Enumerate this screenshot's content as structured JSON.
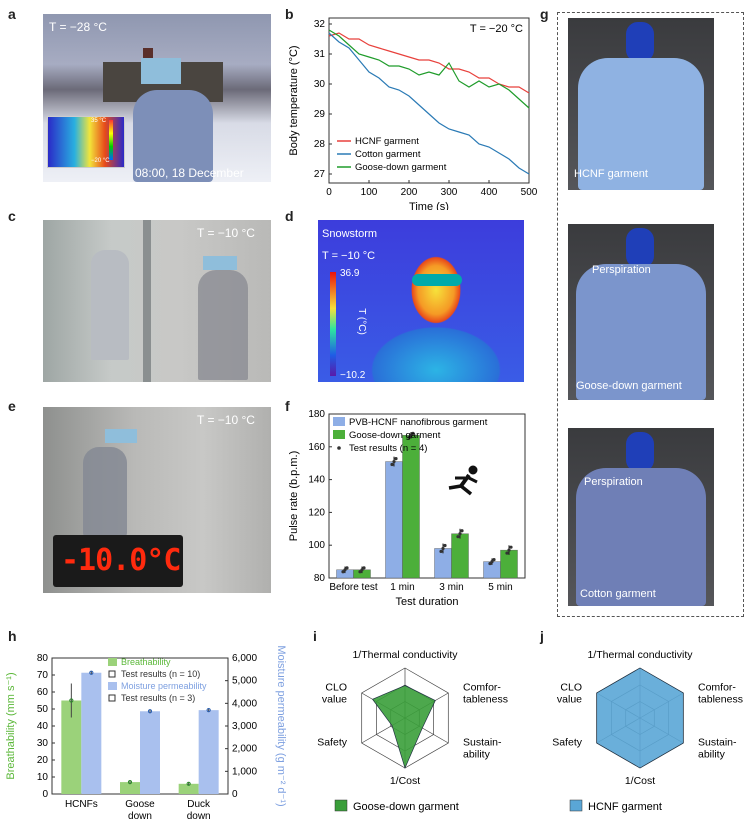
{
  "panel_labels": {
    "a": "a",
    "b": "b",
    "c": "c",
    "d": "d",
    "e": "e",
    "f": "f",
    "g": "g",
    "h": "h",
    "i": "i",
    "j": "j"
  },
  "photos": {
    "a": {
      "temp": "T = −28 °C",
      "timestamp": "08:00, 18 December 2023",
      "cb_top": "35 °C",
      "cb_bottom": "−20 °C"
    },
    "c": {
      "temp": "T = −10 °C"
    },
    "d": {
      "title": "Snowstorm",
      "temp": "T = −10 °C",
      "cb_top": "36.9",
      "cb_bottom": "−10.2",
      "cb_unit": "T (°C)"
    },
    "e": {
      "temp": "T = −10 °C",
      "display": "-10.0°C"
    },
    "g": {
      "label1": "HCNF garment",
      "label2a": "Perspiration",
      "label2b": "Goose-down garment",
      "label3a": "Perspiration",
      "label3b": "Cotton garment"
    }
  },
  "colors": {
    "hcnf": "#e8413c",
    "cotton": "#2a7ab5",
    "goose": "#1f9c2a",
    "blue_bar": "#8eaee6",
    "green_bar": "#4caf3a",
    "breath": "#9bd27a",
    "moist": "#a9c0ee",
    "radar_goose": "#3a9e3a",
    "radar_hcnf": "#5aa6d6"
  },
  "chart_data": [
    {
      "panel": "b",
      "type": "line",
      "annotation": "T = −20 °C",
      "xlabel": "Time (s)",
      "ylabel": "Body temperature (°C)",
      "xlim": [
        0,
        500
      ],
      "ylim": [
        26.7,
        32.2
      ],
      "xticks": [
        0,
        100,
        200,
        300,
        400,
        500
      ],
      "yticks": [
        27,
        28,
        29,
        30,
        31,
        32
      ],
      "legend": "bottom-left",
      "series": [
        {
          "name": "HCNF garment",
          "color": "#e8413c",
          "x": [
            0,
            25,
            50,
            75,
            100,
            125,
            150,
            175,
            200,
            225,
            250,
            275,
            300,
            325,
            350,
            375,
            400,
            425,
            450,
            475,
            500
          ],
          "y": [
            31.6,
            31.7,
            31.5,
            31.5,
            31.3,
            31.2,
            31.1,
            31.0,
            30.9,
            30.8,
            30.8,
            30.7,
            30.5,
            30.5,
            30.4,
            30.2,
            30.2,
            30.0,
            29.9,
            29.9,
            29.7
          ]
        },
        {
          "name": "Cotton garment",
          "color": "#2a7ab5",
          "x": [
            0,
            25,
            50,
            75,
            100,
            125,
            150,
            175,
            200,
            225,
            250,
            275,
            300,
            325,
            350,
            375,
            400,
            425,
            450,
            475,
            500
          ],
          "y": [
            31.7,
            31.4,
            31.2,
            30.8,
            30.4,
            30.2,
            29.9,
            29.8,
            29.6,
            29.3,
            29.0,
            28.7,
            28.5,
            28.4,
            28.3,
            28.0,
            27.9,
            27.7,
            27.5,
            27.2,
            27.0
          ]
        },
        {
          "name": "Goose-down garment",
          "color": "#1f9c2a",
          "x": [
            0,
            25,
            50,
            75,
            100,
            125,
            150,
            175,
            200,
            225,
            250,
            275,
            300,
            325,
            350,
            375,
            400,
            425,
            450,
            475,
            500
          ],
          "y": [
            31.8,
            31.6,
            31.3,
            31.0,
            30.9,
            30.8,
            30.6,
            30.6,
            30.5,
            30.3,
            30.4,
            30.3,
            30.7,
            30.1,
            29.9,
            30.1,
            29.9,
            30.0,
            29.8,
            29.5,
            29.2
          ]
        }
      ]
    },
    {
      "panel": "f",
      "type": "bar",
      "xlabel": "Test duration",
      "ylabel": "Pulse rate (b.p.m.)",
      "categories": [
        "Before test",
        "1 min",
        "3 min",
        "5 min"
      ],
      "ylim": [
        80,
        180
      ],
      "yticks": [
        80,
        100,
        120,
        140,
        160,
        180
      ],
      "legend": "top-left",
      "series": [
        {
          "name": "PVB-HCNF nanofibrous garment",
          "color": "#8eaee6",
          "values": [
            85,
            151,
            98,
            90
          ],
          "errors": [
            2,
            3,
            3,
            2
          ]
        },
        {
          "name": "Goose-down garment",
          "color": "#4caf3a",
          "values": [
            85,
            167,
            107,
            97
          ],
          "errors": [
            2,
            2,
            3,
            3
          ]
        }
      ],
      "points_legend": "Test results (n = 4)"
    },
    {
      "panel": "h",
      "type": "bar",
      "categories": [
        "HCNFs",
        "Goose down",
        "Duck down"
      ],
      "ylabel_left": "Breathability (mm s⁻¹)",
      "ylabel_right": "Moisture permeability (g m⁻² d⁻¹)",
      "ylim_left": [
        0,
        80
      ],
      "yticks_left": [
        0,
        10,
        20,
        30,
        40,
        50,
        60,
        70,
        80
      ],
      "ylim_right": [
        0,
        6000
      ],
      "yticks_right": [
        "0",
        "1,000",
        "2,000",
        "3,000",
        "4,000",
        "5,000",
        "6,000"
      ],
      "series": [
        {
          "name": "Breathability",
          "color": "#9bd27a",
          "axis": "left",
          "values": [
            55,
            7,
            6
          ],
          "errors": [
            10,
            1,
            1
          ]
        },
        {
          "name": "Moisture permeability",
          "color": "#a9c0ee",
          "axis": "right",
          "values": [
            5350,
            3650,
            3700
          ],
          "errors": [
            60,
            60,
            60
          ]
        }
      ],
      "points_legend_1": "Test results (n = 10)",
      "points_legend_2": "Test results (n = 3)"
    },
    {
      "panel": "i",
      "type": "radar",
      "axes": [
        "1/Thermal conductivity",
        "Comfor-\ntableness",
        "Sustain-\nability",
        "1/Cost",
        "Safety",
        "CLO\nvalue"
      ],
      "series": [
        {
          "name": "Goose-down garment",
          "color": "#3a9e3a",
          "values": [
            0.65,
            0.7,
            0.4,
            1.0,
            0.3,
            0.75
          ]
        }
      ]
    },
    {
      "panel": "j",
      "type": "radar",
      "axes": [
        "1/Thermal conductivity",
        "Comfor-\ntableness",
        "Sustain-\nability",
        "1/Cost",
        "Safety",
        "CLO\nvalue"
      ],
      "series": [
        {
          "name": "HCNF garment",
          "color": "#5aa6d6",
          "values": [
            1,
            1,
            1,
            1,
            1,
            1
          ]
        }
      ]
    }
  ]
}
